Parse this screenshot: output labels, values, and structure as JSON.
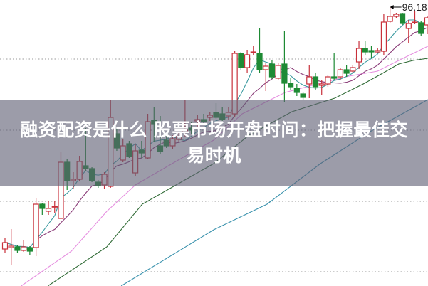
{
  "article": {
    "title": "融资配资是什么 股票市场开盘时间：把握最佳交易时机"
  },
  "chart_data": {
    "type": "candlestick",
    "title": "",
    "xlabel": "",
    "ylabel": "",
    "ylim": [
      56.98,
      97.18
    ],
    "gridlines": [
      88.88,
      78.88,
      68.88,
      58.98
    ],
    "grid": "dotted horizontal",
    "max_label": {
      "text": "96.18",
      "index": 62,
      "value": 96.18
    },
    "colors": {
      "up": "#c8303a",
      "down": "#1e8a34",
      "ma5": "#3b9aa0",
      "ma10": "#8a3c78",
      "ma_pink": "#e68fe0",
      "ma_green": "#2f6a35",
      "ma_blue": "#3a92ad",
      "grid": "#999999"
    },
    "candles": [
      [
        62.18,
        63.68,
        61.68,
        63.08
      ],
      [
        62.38,
        64.98,
        59.88,
        62.58
      ],
      [
        62.48,
        62.68,
        61.68,
        61.98
      ],
      [
        61.98,
        63.48,
        61.78,
        62.48
      ],
      [
        62.38,
        62.58,
        61.38,
        61.88
      ],
      [
        62.38,
        69.28,
        61.18,
        68.48
      ],
      [
        68.48,
        68.68,
        66.98,
        67.88
      ],
      [
        67.48,
        68.88,
        66.98,
        67.88
      ],
      [
        68.08,
        68.98,
        67.18,
        68.18
      ],
      [
        66.48,
        75.88,
        66.48,
        74.38
      ],
      [
        74.38,
        74.78,
        70.48,
        71.78
      ],
      [
        71.78,
        72.98,
        70.68,
        71.98
      ],
      [
        71.98,
        75.28,
        71.78,
        74.48
      ],
      [
        73.88,
        79.18,
        73.18,
        73.48
      ],
      [
        73.48,
        73.68,
        71.58,
        71.78
      ],
      [
        71.58,
        71.88,
        70.78,
        71.08
      ],
      [
        71.18,
        72.98,
        70.58,
        72.68
      ],
      [
        70.98,
        83.18,
        70.78,
        80.68
      ],
      [
        78.38,
        79.18,
        75.98,
        76.38
      ],
      [
        74.68,
        77.68,
        74.38,
        76.68
      ],
      [
        76.98,
        77.38,
        74.98,
        75.18
      ],
      [
        72.88,
        76.88,
        72.48,
        75.98
      ],
      [
        76.08,
        77.38,
        74.98,
        75.68
      ],
      [
        74.98,
        81.18,
        74.78,
        80.08
      ],
      [
        80.28,
        82.18,
        77.18,
        79.78
      ],
      [
        76.68,
        80.88,
        75.48,
        75.88
      ],
      [
        77.48,
        78.18,
        76.38,
        76.68
      ],
      [
        76.68,
        78.18,
        76.18,
        77.68
      ],
      [
        77.58,
        78.68,
        77.18,
        77.98
      ],
      [
        78.68,
        83.18,
        77.98,
        78.88
      ],
      [
        79.18,
        79.98,
        78.38,
        78.88
      ],
      [
        80.18,
        80.98,
        79.38,
        80.38
      ],
      [
        80.38,
        81.18,
        79.68,
        80.08
      ],
      [
        80.68,
        81.38,
        80.18,
        80.98
      ],
      [
        81.38,
        82.68,
        80.48,
        80.68
      ],
      [
        81.18,
        82.18,
        80.18,
        80.38
      ],
      [
        80.88,
        82.18,
        80.38,
        81.38
      ],
      [
        81.18,
        89.98,
        80.68,
        89.68
      ],
      [
        89.68,
        89.88,
        87.38,
        87.68
      ],
      [
        87.68,
        90.18,
        86.98,
        89.48
      ],
      [
        89.78,
        90.68,
        89.38,
        89.88
      ],
      [
        89.68,
        93.18,
        86.98,
        87.38
      ],
      [
        87.38,
        88.38,
        84.38,
        87.88
      ],
      [
        88.18,
        88.68,
        86.08,
        86.38
      ],
      [
        86.18,
        88.38,
        85.88,
        87.98
      ],
      [
        88.18,
        92.78,
        82.88,
        85.48
      ],
      [
        85.48,
        86.18,
        84.48,
        84.98
      ],
      [
        84.78,
        85.38,
        83.68,
        84.18
      ],
      [
        83.98,
        84.18,
        83.18,
        83.48
      ],
      [
        85.38,
        87.98,
        83.38,
        86.38
      ],
      [
        86.38,
        86.98,
        84.48,
        84.98
      ],
      [
        85.18,
        85.98,
        83.88,
        85.38
      ],
      [
        85.38,
        86.68,
        84.98,
        86.38
      ],
      [
        86.38,
        89.68,
        85.98,
        86.18
      ],
      [
        86.38,
        87.58,
        85.98,
        87.38
      ],
      [
        87.38,
        87.98,
        86.38,
        86.88
      ],
      [
        87.18,
        87.98,
        86.88,
        87.68
      ],
      [
        88.48,
        91.38,
        87.48,
        90.38
      ],
      [
        90.38,
        91.48,
        89.38,
        89.88
      ],
      [
        90.08,
        90.68,
        88.98,
        89.88
      ],
      [
        89.88,
        90.38,
        89.68,
        90.08
      ],
      [
        89.98,
        95.18,
        89.38,
        94.08
      ],
      [
        94.18,
        96.18,
        93.98,
        94.88
      ],
      [
        94.88,
        95.38,
        94.68,
        95.18
      ],
      [
        95.28,
        95.38,
        93.68,
        93.88
      ],
      [
        93.18,
        94.38,
        91.18,
        93.88
      ],
      [
        93.98,
        95.68,
        93.78,
        94.08
      ],
      [
        93.98,
        94.18,
        92.18,
        92.48
      ],
      [
        93.68,
        94.88,
        92.38,
        94.68
      ]
    ],
    "candle_fields": [
      "open",
      "high",
      "low",
      "close"
    ],
    "moving_averages": {
      "pink": [
        [
          2.6,
          56.98
        ],
        [
          10.7,
          61.88
        ],
        [
          16.4,
          67.48
        ],
        [
          21,
          71.18
        ],
        [
          27.9,
          74.68
        ],
        [
          33.6,
          77.48
        ],
        [
          38.2,
          81.18
        ],
        [
          45.1,
          84.18
        ],
        [
          50.8,
          85.48
        ],
        [
          55.4,
          86.48
        ],
        [
          60,
          87.18
        ],
        [
          63.4,
          88.68
        ],
        [
          68.1,
          90.68
        ]
      ],
      "green": [
        [
          6.9,
          56.98
        ],
        [
          16.4,
          62.48
        ],
        [
          22.1,
          68.48
        ],
        [
          33.6,
          74.18
        ],
        [
          39.3,
          78.18
        ],
        [
          46.2,
          81.48
        ],
        [
          53.1,
          83.38
        ],
        [
          57.7,
          85.38
        ],
        [
          60.8,
          86.88
        ],
        [
          63.4,
          88.18
        ],
        [
          65.7,
          88.68
        ],
        [
          68.1,
          88.98
        ]
      ],
      "blue": [
        [
          18.7,
          56.98
        ],
        [
          33.6,
          64.88
        ],
        [
          42.2,
          68.48
        ],
        [
          50.8,
          74.18
        ],
        [
          58.8,
          78.68
        ],
        [
          68.1,
          83.18
        ]
      ]
    }
  }
}
